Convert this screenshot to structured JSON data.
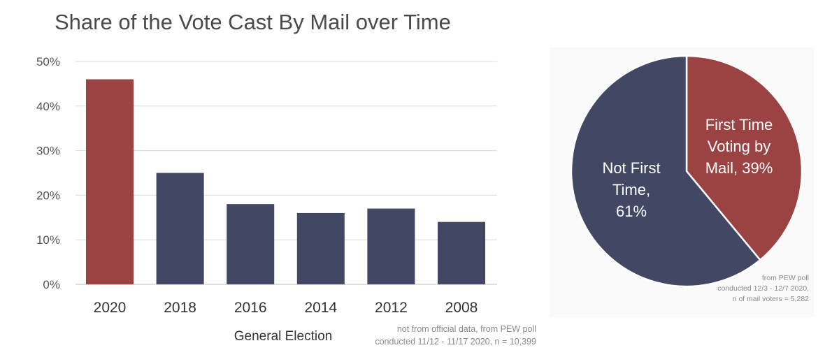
{
  "chart_data": [
    {
      "type": "bar",
      "title": "Share of the Vote Cast By Mail over Time",
      "categories": [
        "2020",
        "2018",
        "2016",
        "2014",
        "2012",
        "2008"
      ],
      "values": [
        46,
        25,
        18,
        16,
        17,
        14
      ],
      "bar_colors": [
        "#9b4242",
        "#424764",
        "#424764",
        "#424764",
        "#424764",
        "#424764"
      ],
      "xlabel": "General Election",
      "ylabel": "",
      "ylim": [
        0,
        50
      ],
      "yticks": [
        0,
        10,
        20,
        30,
        40,
        50
      ],
      "ytick_labels": [
        "0%",
        "10%",
        "20%",
        "30%",
        "40%",
        "50%"
      ],
      "grid": true,
      "annotation": [
        "not from official data, from PEW poll",
        "conducted 11/12 - 11/17 2020, n = 10,399"
      ]
    },
    {
      "type": "pie",
      "slices": [
        {
          "value": 39,
          "color": "#9b4242",
          "label_lines": [
            "First Time",
            "Voting by",
            "Mail, 39%"
          ]
        },
        {
          "value": 61,
          "color": "#424764",
          "label_lines": [
            "Not First",
            "Time,",
            "61%"
          ]
        }
      ],
      "annotation": [
        "from PEW poll",
        "conducted 12/3 - 12/7 2020,",
        "n of mail voters = 5,282"
      ]
    }
  ]
}
